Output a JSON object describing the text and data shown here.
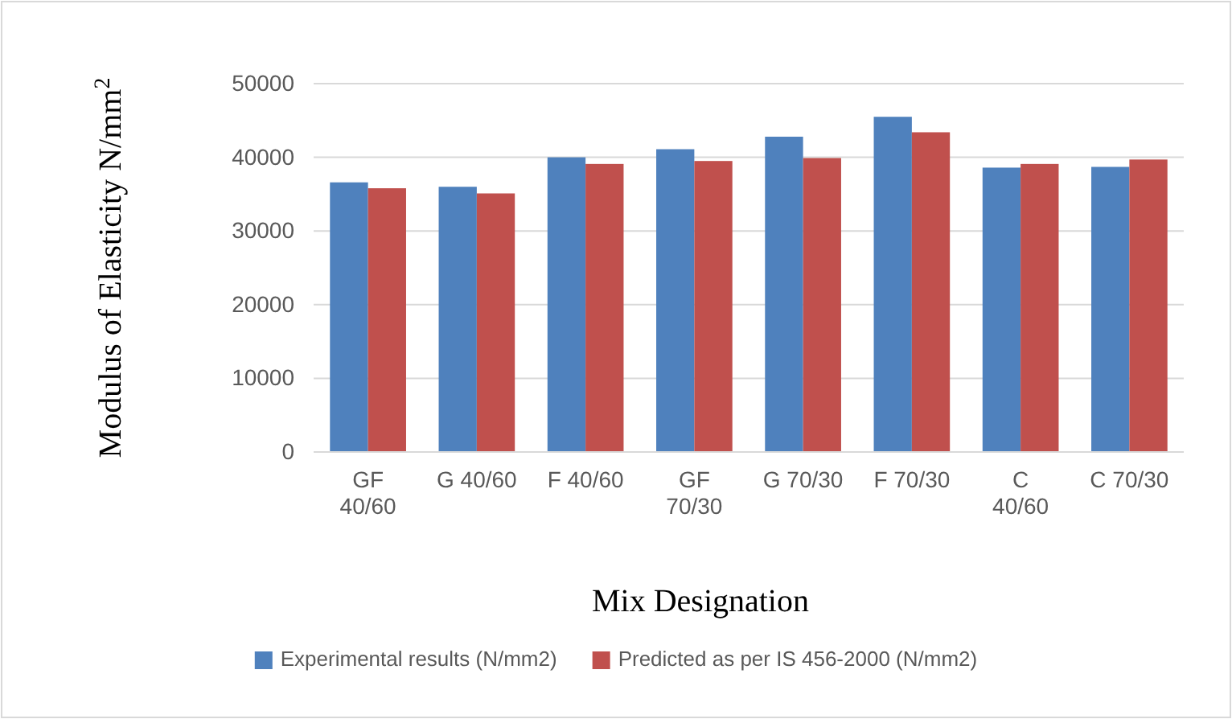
{
  "chart_data": {
    "type": "bar",
    "xlabel": "Mix Designation",
    "ylabel": "Modulus of Elasticity N/mm$^{2}$",
    "categories": [
      "GF 40/60",
      "G 40/60",
      "F 40/60",
      "GF 70/30",
      "G 70/30",
      "F 70/30",
      "C 40/60",
      "C 70/30"
    ],
    "series": [
      {
        "name": "Experimental results (N/mm2)",
        "color": "#4f81bd",
        "values": [
          36600,
          36000,
          40000,
          41100,
          42800,
          45500,
          38600,
          38700
        ]
      },
      {
        "name": "Predicted as per IS 456-2000 (N/mm2)",
        "color": "#c0504d",
        "values": [
          35800,
          35100,
          39100,
          39500,
          39900,
          43400,
          39100,
          39700
        ]
      }
    ],
    "ylim": [
      0,
      50000
    ],
    "yticks": [
      0,
      10000,
      20000,
      30000,
      40000,
      50000
    ],
    "grid": "y",
    "legend": "bottom"
  }
}
